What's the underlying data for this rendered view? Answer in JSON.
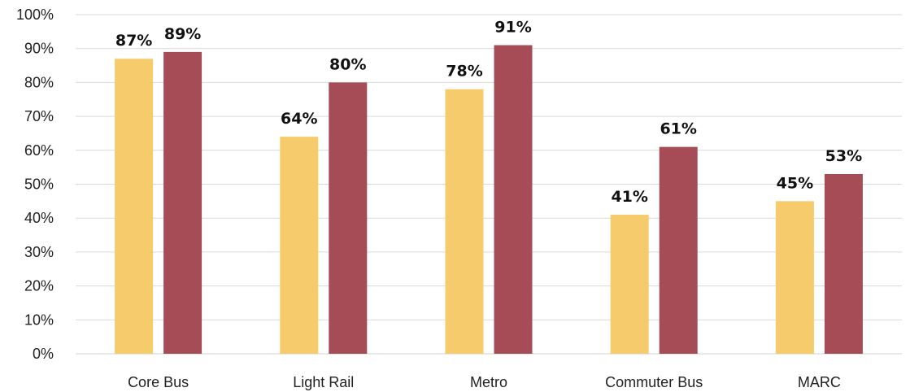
{
  "chart_data": {
    "type": "bar",
    "categories": [
      "Core Bus",
      "Light Rail",
      "Metro",
      "Commuter Bus",
      "MARC"
    ],
    "series": [
      {
        "values": [
          87,
          64,
          78,
          41,
          45
        ],
        "color": "#F6CB6B"
      },
      {
        "values": [
          89,
          80,
          91,
          61,
          53
        ],
        "color": "#A54C56"
      }
    ],
    "value_labels": [
      [
        "87%",
        "64%",
        "78%",
        "41%",
        "45%"
      ],
      [
        "89%",
        "80%",
        "91%",
        "61%",
        "53%"
      ]
    ],
    "yticks": [
      "0%",
      "10%",
      "20%",
      "30%",
      "40%",
      "50%",
      "60%",
      "70%",
      "80%",
      "90%",
      "100%"
    ],
    "ylim": [
      0,
      100
    ],
    "grid": true,
    "legend": false,
    "title": "",
    "xlabel": "",
    "ylabel": ""
  }
}
